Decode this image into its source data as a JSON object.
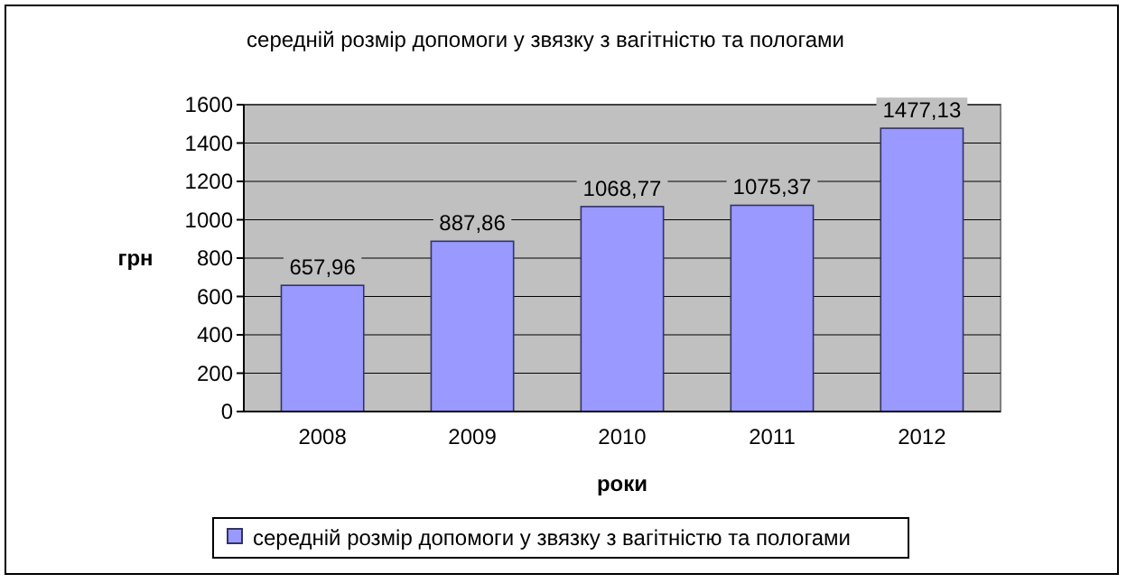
{
  "chart_data": {
    "type": "bar",
    "title": "середній розмір допомоги у звязку з вагітністю та пологами",
    "xlabel": "роки",
    "ylabel": "грн",
    "categories": [
      "2008",
      "2009",
      "2010",
      "2011",
      "2012"
    ],
    "series": [
      {
        "name": "середній розмір допомоги у звязку з вагітністю та пологами",
        "color": "#9999ff",
        "values": [
          657.96,
          887.86,
          1068.77,
          1075.37,
          1477.13
        ]
      }
    ],
    "value_labels": [
      "657,96",
      "887,86",
      "1068,77",
      "1075,37",
      "1477,13"
    ],
    "ylim": [
      0,
      1600
    ],
    "yticks": [
      0,
      200,
      400,
      600,
      800,
      1000,
      1200,
      1400,
      1600
    ],
    "grid": "y",
    "legend": "bottom"
  }
}
